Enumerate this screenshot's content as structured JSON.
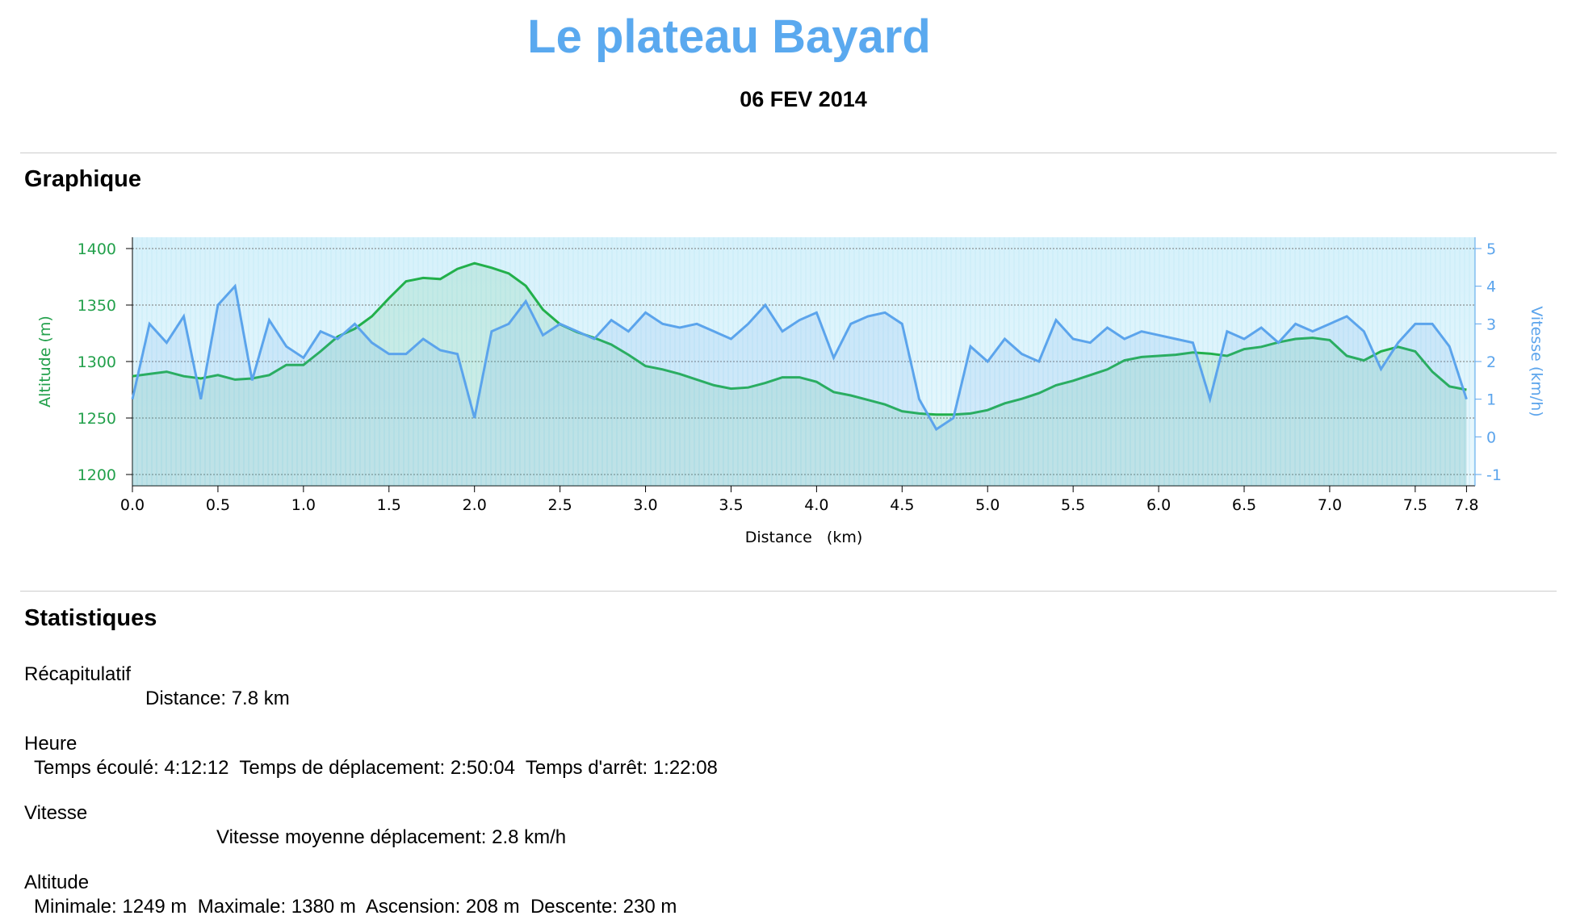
{
  "header": {
    "title": "Le plateau Bayard",
    "date": "06 FEV 2014"
  },
  "sections": {
    "chart": "Graphique",
    "stats": "Statistiques"
  },
  "chart_data": {
    "type": "line",
    "x": [
      0.0,
      0.1,
      0.2,
      0.3,
      0.4,
      0.5,
      0.6,
      0.7,
      0.8,
      0.9,
      1.0,
      1.1,
      1.2,
      1.3,
      1.4,
      1.5,
      1.6,
      1.7,
      1.8,
      1.9,
      2.0,
      2.1,
      2.2,
      2.3,
      2.4,
      2.5,
      2.6,
      2.7,
      2.8,
      2.9,
      3.0,
      3.1,
      3.2,
      3.3,
      3.4,
      3.5,
      3.6,
      3.7,
      3.8,
      3.9,
      4.0,
      4.1,
      4.2,
      4.3,
      4.4,
      4.5,
      4.6,
      4.7,
      4.8,
      4.9,
      5.0,
      5.1,
      5.2,
      5.3,
      5.4,
      5.5,
      5.6,
      5.7,
      5.8,
      5.9,
      6.0,
      6.1,
      6.2,
      6.3,
      6.4,
      6.5,
      6.6,
      6.7,
      6.8,
      6.9,
      7.0,
      7.1,
      7.2,
      7.3,
      7.4,
      7.5,
      7.6,
      7.7,
      7.8
    ],
    "series": [
      {
        "name": "Altitude (m)",
        "color": "#22b04b",
        "values": [
          1287,
          1289,
          1291,
          1287,
          1285,
          1288,
          1284,
          1285,
          1288,
          1297,
          1297,
          1309,
          1322,
          1329,
          1340,
          1356,
          1371,
          1374,
          1373,
          1382,
          1387,
          1383,
          1378,
          1367,
          1346,
          1333,
          1326,
          1321,
          1315,
          1306,
          1296,
          1293,
          1289,
          1284,
          1279,
          1276,
          1277,
          1281,
          1286,
          1286,
          1282,
          1273,
          1270,
          1266,
          1262,
          1256,
          1254,
          1253,
          1253,
          1254,
          1257,
          1263,
          1267,
          1272,
          1279,
          1283,
          1288,
          1293,
          1301,
          1304,
          1305,
          1306,
          1308,
          1307,
          1305,
          1311,
          1313,
          1317,
          1320,
          1321,
          1319,
          1305,
          1301,
          1309,
          1313,
          1309,
          1291,
          1278,
          1275
        ]
      },
      {
        "name": "Vitesse (km/h)",
        "color": "#5ba4ec",
        "axis": "y2",
        "values": [
          1.0,
          3.0,
          2.5,
          3.2,
          1.0,
          3.5,
          4.0,
          1.5,
          3.1,
          2.4,
          2.1,
          2.8,
          2.6,
          3.0,
          2.5,
          2.2,
          2.2,
          2.6,
          2.3,
          2.2,
          0.5,
          2.8,
          3.0,
          3.6,
          2.7,
          3.0,
          2.8,
          2.6,
          3.1,
          2.8,
          3.3,
          3.0,
          2.9,
          3.0,
          2.8,
          2.6,
          3.0,
          3.5,
          2.8,
          3.1,
          3.3,
          2.1,
          3.0,
          3.2,
          3.3,
          3.0,
          1.0,
          0.2,
          0.5,
          2.4,
          2.0,
          2.6,
          2.2,
          2.0,
          3.1,
          2.6,
          2.5,
          2.9,
          2.6,
          2.8,
          2.7,
          2.6,
          2.5,
          1.0,
          2.8,
          2.6,
          2.9,
          2.5,
          3.0,
          2.8,
          3.0,
          3.2,
          2.8,
          1.8,
          2.5,
          3.0,
          3.0,
          2.4,
          1.0
        ]
      }
    ],
    "x_label": "Distance   (km)",
    "xlim": [
      0,
      7.85
    ],
    "xticks": [
      {
        "value": 0,
        "label": "0.0"
      },
      0.5,
      {
        "value": 1,
        "label": "1.0"
      },
      1.5,
      {
        "value": 2,
        "label": "2.0"
      },
      2.5,
      {
        "value": 3,
        "label": "3.0"
      },
      3.5,
      {
        "value": 4,
        "label": "4.0"
      },
      4.5,
      {
        "value": 5,
        "label": "5.0"
      },
      5.5,
      {
        "value": 6,
        "label": "6.0"
      },
      6.5,
      {
        "value": 7,
        "label": "7.0"
      },
      7.5,
      7.8
    ],
    "ylim": [
      1190,
      1410
    ],
    "yticks": [
      1200,
      1250,
      1300,
      1350,
      1400
    ],
    "y2lim": [
      -1.3,
      5.3
    ],
    "y2ticks": [
      -1,
      0,
      1,
      2,
      3,
      4,
      5
    ],
    "grid": true
  },
  "stats": [
    {
      "heading": "Récapitulatif",
      "line": "Distance: 7.8 km"
    },
    {
      "heading": "Heure",
      "line": "Temps écoulé: 4:12:12  Temps de déplacement: 2:50:04  Temps d'arrêt: 1:22:08"
    },
    {
      "heading": "Vitesse",
      "line": "Vitesse moyenne déplacement: 2.8 km/h"
    },
    {
      "heading": "Altitude",
      "line": "Minimale: 1249 m  Maximale: 1380 m  Ascension: 208 m  Descente: 230 m"
    }
  ]
}
